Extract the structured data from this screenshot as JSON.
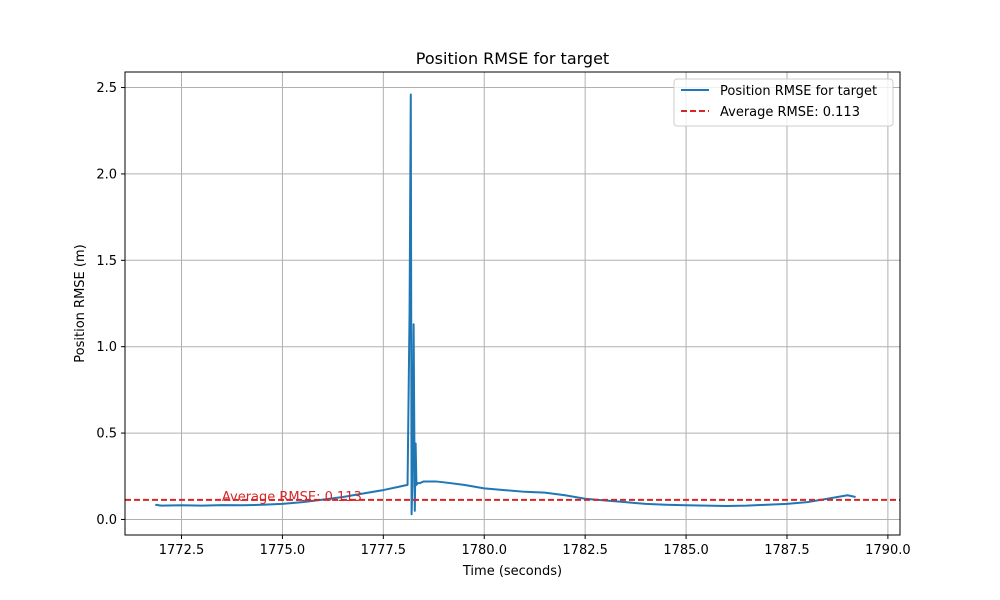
{
  "chart_data": {
    "type": "line",
    "title": "Position RMSE for target",
    "xlabel": "Time (seconds)",
    "ylabel": "Position RMSE (m)",
    "xlim": [
      1771.1,
      1790.3
    ],
    "ylim": [
      -0.09,
      2.59
    ],
    "xticks": [
      1772.5,
      1775.0,
      1777.5,
      1780.0,
      1782.5,
      1785.0,
      1787.5,
      1790.0
    ],
    "xtick_labels": [
      "1772.5",
      "1775.0",
      "1777.5",
      "1780.0",
      "1782.5",
      "1785.0",
      "1787.5",
      "1790.0"
    ],
    "yticks": [
      0.0,
      0.5,
      1.0,
      1.5,
      2.0,
      2.5
    ],
    "ytick_labels": [
      "0.0",
      "0.5",
      "1.0",
      "1.5",
      "2.0",
      "2.5"
    ],
    "grid": true,
    "legend_position": "top-right",
    "series": [
      {
        "name": "Position RMSE for target",
        "color": "#1f77b4",
        "style": "solid",
        "x": [
          1771.85,
          1772.0,
          1772.5,
          1773.0,
          1773.5,
          1774.0,
          1774.5,
          1775.0,
          1775.5,
          1776.0,
          1776.5,
          1777.0,
          1777.5,
          1777.9,
          1778.1,
          1778.15,
          1778.18,
          1778.2,
          1778.22,
          1778.25,
          1778.28,
          1778.3,
          1778.32,
          1778.35,
          1778.4,
          1778.5,
          1778.8,
          1779.0,
          1779.5,
          1780.0,
          1780.5,
          1781.0,
          1781.5,
          1782.0,
          1782.5,
          1783.0,
          1783.5,
          1784.0,
          1784.5,
          1785.0,
          1785.5,
          1786.0,
          1786.5,
          1787.0,
          1787.5,
          1788.0,
          1788.5,
          1789.0,
          1789.2
        ],
        "y": [
          0.085,
          0.08,
          0.082,
          0.08,
          0.083,
          0.082,
          0.085,
          0.09,
          0.1,
          0.115,
          0.13,
          0.15,
          0.17,
          0.19,
          0.2,
          1.2,
          2.46,
          0.03,
          0.2,
          1.13,
          0.05,
          0.44,
          0.2,
          0.21,
          0.21,
          0.22,
          0.22,
          0.215,
          0.2,
          0.18,
          0.17,
          0.16,
          0.155,
          0.14,
          0.12,
          0.11,
          0.1,
          0.09,
          0.085,
          0.082,
          0.08,
          0.078,
          0.08,
          0.085,
          0.09,
          0.1,
          0.12,
          0.14,
          0.13
        ]
      },
      {
        "name": "Average RMSE: 0.113",
        "color": "#d62728",
        "style": "dashed",
        "y_constant": 0.113
      }
    ],
    "annotations": [
      {
        "text": "Average RMSE: 0.113",
        "x": 1773.5,
        "y": 0.113,
        "color": "#d62728"
      }
    ]
  }
}
